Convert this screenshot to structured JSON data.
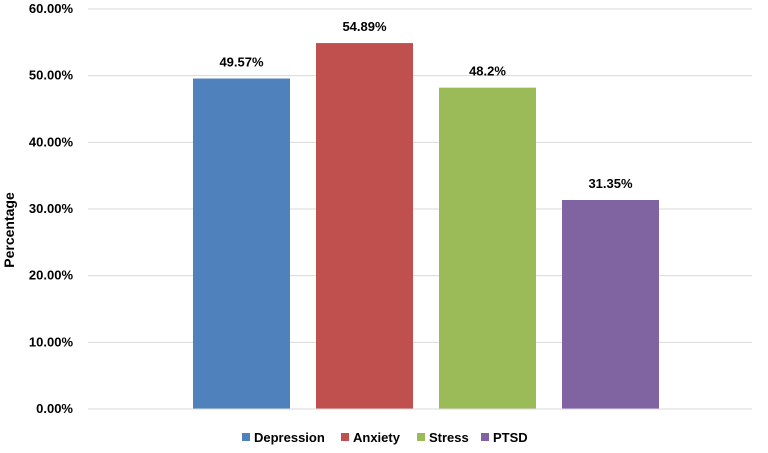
{
  "chart_data": {
    "type": "bar",
    "categories": [
      "Depression",
      "Anxiety",
      "Stress",
      "PTSD"
    ],
    "values": [
      49.57,
      54.89,
      48.2,
      31.35
    ],
    "data_labels": [
      "49.57%",
      "54.89%",
      "48.2%",
      "31.35%"
    ],
    "colors": [
      "#4f81bd",
      "#c0504d",
      "#9bbb59",
      "#8064a2"
    ],
    "title": "",
    "xlabel": "",
    "ylabel": "Percentage",
    "ylim": [
      0,
      60
    ],
    "y_ticks": [
      {
        "value": 0,
        "label": "0.00%"
      },
      {
        "value": 10,
        "label": "10.00%"
      },
      {
        "value": 20,
        "label": "20.00%"
      },
      {
        "value": 30,
        "label": "30.00%"
      },
      {
        "value": 40,
        "label": "40.00%"
      },
      {
        "value": 50,
        "label": "50.00%"
      },
      {
        "value": 60,
        "label": "60.00%"
      }
    ],
    "grid": true,
    "legend": "bottom"
  }
}
